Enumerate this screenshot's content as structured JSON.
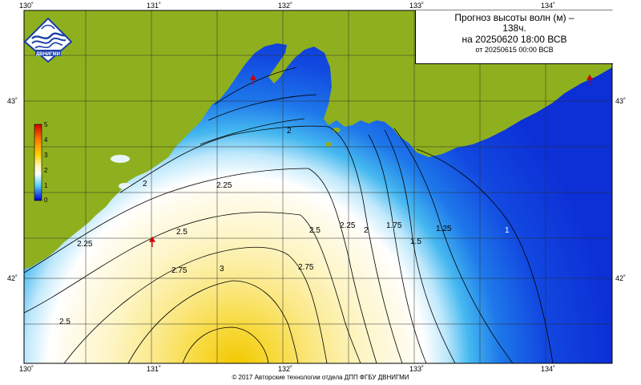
{
  "title": {
    "line1": "Прогноз высоты волн (м) –",
    "line2": "138ч.",
    "line3": "на 20250620 18:00 ВСВ",
    "line4": "от 20250615 00:00 ВСВ"
  },
  "logo_text": "ДВНИГМИ",
  "footer": "© 2017 Авторские технологии отдела ДПП ФГБУ ДВНИГМИ",
  "axes": {
    "lon_labels": [
      "130˚",
      "131˚",
      "132˚",
      "133˚",
      "134˚"
    ],
    "lat_labels": [
      "43˚",
      "42˚"
    ]
  },
  "legend": {
    "labels": [
      "5",
      "4",
      "3",
      "2",
      "1",
      "0"
    ],
    "units": "m",
    "colors": [
      "#e00000",
      "#ff7f00",
      "#ffd700",
      "#fffacd",
      "#5ad2ff",
      "#0000d8"
    ]
  },
  "contours": [
    "1",
    "1.25",
    "1.5",
    "1.75",
    "2",
    "2.25",
    "2.5",
    "2.75",
    "3"
  ],
  "colors": {
    "land": "#8fb01e",
    "sea_deep": "#1240e0",
    "sea_high": "#f0d000"
  }
}
